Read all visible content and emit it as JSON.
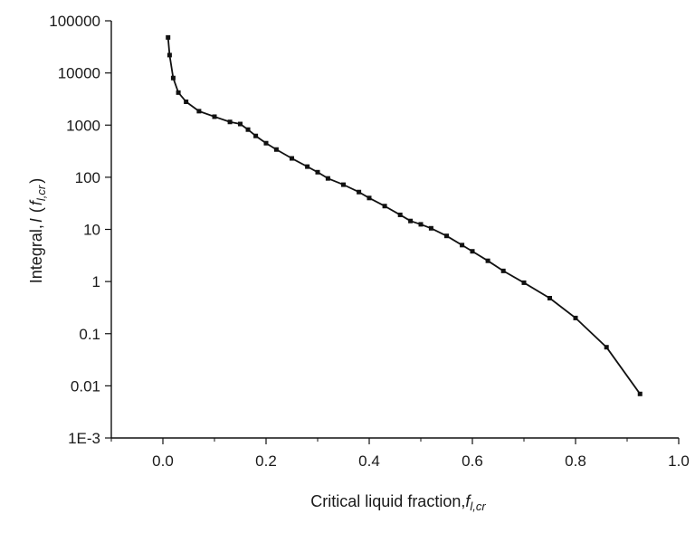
{
  "chart_data": {
    "type": "line",
    "title": "",
    "xlabel": {
      "prefix": "Critical liquid fraction,",
      "symbol": "f",
      "subscript": "l,cr"
    },
    "ylabel": {
      "prefix": "Integral,",
      "symbol": "I",
      "open_paren": "(",
      "inner_symbol": "f",
      "inner_subscript": "l,cr",
      "close_paren": ")"
    },
    "x_scale": "linear",
    "y_scale": "log",
    "xlim": [
      -0.1,
      1.0
    ],
    "ylim": [
      0.001,
      100000
    ],
    "x_ticks": [
      {
        "value": 0.0,
        "label": "0.0"
      },
      {
        "value": 0.2,
        "label": "0.2"
      },
      {
        "value": 0.4,
        "label": "0.4"
      },
      {
        "value": 0.6,
        "label": "0.6"
      },
      {
        "value": 0.8,
        "label": "0.8"
      },
      {
        "value": 1.0,
        "label": "1.0"
      }
    ],
    "y_ticks": [
      {
        "value": 100000,
        "label": "100000"
      },
      {
        "value": 10000,
        "label": "10000"
      },
      {
        "value": 1000,
        "label": "1000"
      },
      {
        "value": 100,
        "label": "100"
      },
      {
        "value": 10,
        "label": "10"
      },
      {
        "value": 1,
        "label": "1"
      },
      {
        "value": 0.1,
        "label": "0.1"
      },
      {
        "value": 0.01,
        "label": "0.01"
      },
      {
        "value": 0.001,
        "label": "1E-3"
      }
    ],
    "grid": false,
    "legend": "none",
    "series": [
      {
        "color": "#111111",
        "marker": "square",
        "x": [
          0.01,
          0.013,
          0.02,
          0.03,
          0.045,
          0.07,
          0.1,
          0.13,
          0.15,
          0.165,
          0.18,
          0.2,
          0.22,
          0.25,
          0.28,
          0.3,
          0.32,
          0.35,
          0.38,
          0.4,
          0.43,
          0.46,
          0.48,
          0.5,
          0.52,
          0.55,
          0.58,
          0.6,
          0.63,
          0.66,
          0.7,
          0.75,
          0.8,
          0.86,
          0.925
        ],
        "y": [
          48000,
          22000,
          8000,
          4200,
          2800,
          1850,
          1450,
          1150,
          1050,
          820,
          620,
          450,
          340,
          230,
          160,
          125,
          95,
          72,
          52,
          40,
          28,
          19,
          14.5,
          12.5,
          10.5,
          7.5,
          5,
          3.8,
          2.5,
          1.6,
          0.95,
          0.48,
          0.2,
          0.055,
          0.007
        ]
      }
    ]
  }
}
